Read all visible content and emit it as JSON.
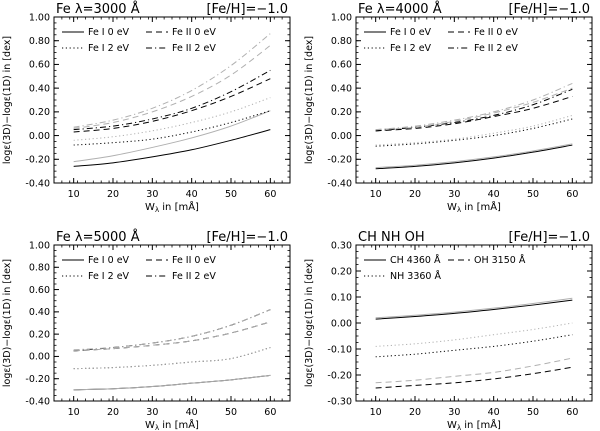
{
  "chart_data": [
    {
      "type": "line",
      "title_left": "Fe  λ=3000 Å",
      "title_right": "[Fe/H]=−1.0",
      "xlabel_main": "W",
      "xlabel_sub": "λ",
      "xlabel_rest": " in [mÅ]",
      "ylabel": "logε(3D)−logε(1D) in [dex]",
      "xlim": [
        5,
        65
      ],
      "ylim": [
        -0.4,
        1.0
      ],
      "xticks": [
        10,
        20,
        30,
        40,
        50,
        60
      ],
      "yticks": [
        -0.4,
        -0.2,
        0.0,
        0.2,
        0.4,
        0.6,
        0.8,
        1.0
      ],
      "ytick_labels": [
        "-0.40",
        "-0.20",
        "0.00",
        "0.20",
        "0.40",
        "0.60",
        "0.80",
        "1.00"
      ],
      "legend": [
        {
          "label": "Fe I 0 eV",
          "dash": "solid"
        },
        {
          "label": "Fe II 0 eV",
          "dash": "dashed"
        },
        {
          "label": "Fe I 2 eV",
          "dash": "dotted"
        },
        {
          "label": "Fe II 2 eV",
          "dash": "dashdot"
        }
      ],
      "x": [
        10,
        20,
        30,
        40,
        50,
        60
      ],
      "series": [
        {
          "dash": "solid",
          "color": "#000000",
          "values": [
            -0.26,
            -0.23,
            -0.18,
            -0.12,
            -0.04,
            0.05
          ]
        },
        {
          "dash": "solid",
          "color": "#b0b0b0",
          "values": [
            -0.22,
            -0.17,
            -0.1,
            -0.02,
            0.08,
            0.21
          ]
        },
        {
          "dash": "dotted",
          "color": "#000000",
          "values": [
            -0.08,
            -0.06,
            -0.03,
            0.03,
            0.11,
            0.21
          ]
        },
        {
          "dash": "dotted",
          "color": "#b0b0b0",
          "values": [
            -0.04,
            -0.01,
            0.04,
            0.11,
            0.2,
            0.32
          ]
        },
        {
          "dash": "dashed",
          "color": "#000000",
          "values": [
            0.03,
            0.06,
            0.12,
            0.21,
            0.33,
            0.48
          ]
        },
        {
          "dash": "dashdot",
          "color": "#000000",
          "values": [
            0.05,
            0.08,
            0.14,
            0.23,
            0.37,
            0.55
          ]
        },
        {
          "dash": "dashed",
          "color": "#b0b0b0",
          "values": [
            0.06,
            0.11,
            0.2,
            0.33,
            0.51,
            0.76
          ]
        },
        {
          "dash": "dashdot",
          "color": "#b0b0b0",
          "values": [
            0.07,
            0.13,
            0.23,
            0.38,
            0.59,
            0.86
          ]
        }
      ]
    },
    {
      "type": "line",
      "title_left": "Fe  λ=4000 Å",
      "title_right": "[Fe/H]=−1.0",
      "xlabel_main": "W",
      "xlabel_sub": "λ",
      "xlabel_rest": " in [mÅ]",
      "ylabel": "logε(3D)−logε(1D) in [dex]",
      "xlim": [
        5,
        65
      ],
      "ylim": [
        -0.4,
        1.0
      ],
      "xticks": [
        10,
        20,
        30,
        40,
        50,
        60
      ],
      "yticks": [
        -0.4,
        -0.2,
        0.0,
        0.2,
        0.4,
        0.6,
        0.8,
        1.0
      ],
      "ytick_labels": [
        "-0.40",
        "-0.20",
        "0.00",
        "0.20",
        "0.40",
        "0.60",
        "0.80",
        "1.00"
      ],
      "legend": [
        {
          "label": "Fe I 0 eV",
          "dash": "solid"
        },
        {
          "label": "Fe II 0 eV",
          "dash": "dashed"
        },
        {
          "label": "Fe I 2 eV",
          "dash": "dotted"
        },
        {
          "label": "Fe II 2 eV",
          "dash": "dashdot"
        }
      ],
      "x": [
        10,
        20,
        30,
        40,
        50,
        60
      ],
      "series": [
        {
          "dash": "solid",
          "color": "#000000",
          "values": [
            -0.28,
            -0.26,
            -0.23,
            -0.19,
            -0.14,
            -0.08
          ]
        },
        {
          "dash": "solid",
          "color": "#b0b0b0",
          "values": [
            -0.27,
            -0.25,
            -0.22,
            -0.18,
            -0.13,
            -0.07
          ]
        },
        {
          "dash": "dotted",
          "color": "#000000",
          "values": [
            -0.09,
            -0.07,
            -0.04,
            0.0,
            0.06,
            0.14
          ]
        },
        {
          "dash": "dotted",
          "color": "#b0b0b0",
          "values": [
            -0.08,
            -0.06,
            -0.03,
            0.02,
            0.08,
            0.17
          ]
        },
        {
          "dash": "dashed",
          "color": "#000000",
          "values": [
            0.04,
            0.06,
            0.1,
            0.16,
            0.23,
            0.33
          ]
        },
        {
          "dash": "dashdot",
          "color": "#000000",
          "values": [
            0.04,
            0.07,
            0.11,
            0.17,
            0.26,
            0.39
          ]
        },
        {
          "dash": "dashed",
          "color": "#b0b0b0",
          "values": [
            0.05,
            0.07,
            0.12,
            0.19,
            0.28,
            0.4
          ]
        },
        {
          "dash": "dashdot",
          "color": "#b0b0b0",
          "values": [
            0.05,
            0.08,
            0.13,
            0.2,
            0.3,
            0.44
          ]
        }
      ]
    },
    {
      "type": "line",
      "title_left": "Fe  λ=5000 Å",
      "title_right": "[Fe/H]=−1.0",
      "xlabel_main": "W",
      "xlabel_sub": "λ",
      "xlabel_rest": " in [mÅ]",
      "ylabel": "logε(3D)−logε(1D) in [dex]",
      "xlim": [
        5,
        65
      ],
      "ylim": [
        -0.4,
        1.0
      ],
      "xticks": [
        10,
        20,
        30,
        40,
        50,
        60
      ],
      "yticks": [
        -0.4,
        -0.2,
        0.0,
        0.2,
        0.4,
        0.6,
        0.8,
        1.0
      ],
      "ytick_labels": [
        "-0.40",
        "-0.20",
        "0.00",
        "0.20",
        "0.40",
        "0.60",
        "0.80",
        "1.00"
      ],
      "legend": [
        {
          "label": "Fe I 0 eV",
          "dash": "solid"
        },
        {
          "label": "Fe II 0 eV",
          "dash": "dashed"
        },
        {
          "label": "Fe I 2 eV",
          "dash": "dotted"
        },
        {
          "label": "Fe II 2 eV",
          "dash": "dashdot"
        }
      ],
      "x": [
        10,
        20,
        30,
        40,
        50,
        60
      ],
      "series": [
        {
          "dash": "solid",
          "color": "#000000",
          "values": [
            -0.3,
            -0.29,
            -0.27,
            -0.24,
            -0.21,
            -0.17
          ]
        },
        {
          "dash": "solid",
          "color": "#b0b0b0",
          "values": [
            -0.3,
            -0.29,
            -0.27,
            -0.24,
            -0.21,
            -0.17
          ]
        },
        {
          "dash": "dotted",
          "color": "#000000",
          "values": [
            -0.11,
            -0.1,
            -0.08,
            -0.05,
            -0.02,
            0.08
          ]
        },
        {
          "dash": "dotted",
          "color": "#b0b0b0",
          "values": [
            -0.11,
            -0.1,
            -0.08,
            -0.05,
            -0.02,
            0.08
          ]
        },
        {
          "dash": "dashed",
          "color": "#000000",
          "values": [
            0.05,
            0.07,
            0.1,
            0.14,
            0.21,
            0.31
          ]
        },
        {
          "dash": "dashdot",
          "color": "#000000",
          "values": [
            0.05,
            0.08,
            0.12,
            0.18,
            0.28,
            0.42
          ]
        },
        {
          "dash": "dashed",
          "color": "#b0b0b0",
          "values": [
            0.05,
            0.07,
            0.1,
            0.14,
            0.21,
            0.31
          ]
        },
        {
          "dash": "dashdot",
          "color": "#b0b0b0",
          "values": [
            0.06,
            0.08,
            0.12,
            0.18,
            0.28,
            0.42
          ]
        }
      ]
    },
    {
      "type": "line",
      "title_left": "CH  NH  OH",
      "title_right": "[Fe/H]=−1.0",
      "xlabel_main": "W",
      "xlabel_sub": "λ",
      "xlabel_rest": " in [mÅ]",
      "ylabel": "logε(3D)−logε(1D) in [dex]",
      "xlim": [
        5,
        65
      ],
      "ylim": [
        -0.3,
        0.3
      ],
      "xticks": [
        10,
        20,
        30,
        40,
        50,
        60
      ],
      "yticks": [
        -0.3,
        -0.2,
        -0.1,
        0.0,
        0.1,
        0.2,
        0.3
      ],
      "ytick_labels": [
        "-0.30",
        "-0.20",
        "-0.10",
        "0.00",
        "0.10",
        "0.20",
        "0.30"
      ],
      "legend": [
        {
          "label": "CH 4360 Å",
          "dash": "solid"
        },
        {
          "label": "OH 3150 Å",
          "dash": "dashed"
        },
        {
          "label": "NH 3360 Å",
          "dash": "dotted"
        }
      ],
      "x": [
        10,
        20,
        30,
        40,
        50,
        60
      ],
      "series": [
        {
          "dash": "solid",
          "color": "#000000",
          "values": [
            0.015,
            0.025,
            0.037,
            0.052,
            0.069,
            0.088
          ]
        },
        {
          "dash": "solid",
          "color": "#b0b0b0",
          "values": [
            0.02,
            0.03,
            0.042,
            0.057,
            0.075,
            0.095
          ]
        },
        {
          "dash": "dotted",
          "color": "#000000",
          "values": [
            -0.13,
            -0.12,
            -0.105,
            -0.09,
            -0.07,
            -0.045
          ]
        },
        {
          "dash": "dotted",
          "color": "#b0b0b0",
          "values": [
            -0.09,
            -0.08,
            -0.065,
            -0.045,
            -0.025,
            0.0
          ]
        },
        {
          "dash": "dashed",
          "color": "#000000",
          "values": [
            -0.25,
            -0.24,
            -0.23,
            -0.215,
            -0.195,
            -0.17
          ]
        },
        {
          "dash": "dashed",
          "color": "#b0b0b0",
          "values": [
            -0.23,
            -0.22,
            -0.205,
            -0.19,
            -0.165,
            -0.135
          ]
        }
      ]
    }
  ]
}
